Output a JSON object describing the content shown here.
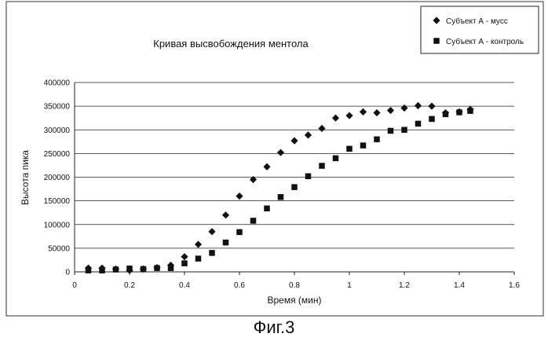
{
  "chart_data": {
    "type": "scatter",
    "title": "Кривая высвобождения ментола",
    "xlabel": "Время (мин)",
    "ylabel": "Высота пика",
    "xlim": [
      0,
      1.6
    ],
    "ylim": [
      0,
      400000
    ],
    "x_ticks": [
      "0",
      "0.2",
      "0.4",
      "0.6",
      "0.8",
      "1",
      "1.2",
      "1.4",
      "1.6"
    ],
    "y_ticks": [
      "0",
      "50000",
      "100000",
      "150000",
      "200000",
      "250000",
      "300000",
      "350000",
      "400000"
    ],
    "grid": "horizontal",
    "legend_position": "top-right",
    "series": [
      {
        "name": "Субъект А - мусс",
        "marker": "diamond",
        "color": "#111111",
        "points": [
          [
            0.05,
            8000
          ],
          [
            0.1,
            8000
          ],
          [
            0.15,
            6000
          ],
          [
            0.2,
            3000
          ],
          [
            0.25,
            6000
          ],
          [
            0.3,
            9000
          ],
          [
            0.35,
            14000
          ],
          [
            0.4,
            32000
          ],
          [
            0.45,
            58000
          ],
          [
            0.5,
            85000
          ],
          [
            0.55,
            120000
          ],
          [
            0.6,
            160000
          ],
          [
            0.65,
            195000
          ],
          [
            0.7,
            222000
          ],
          [
            0.75,
            252000
          ],
          [
            0.8,
            277000
          ],
          [
            0.85,
            289000
          ],
          [
            0.9,
            303000
          ],
          [
            0.95,
            325000
          ],
          [
            1.0,
            330000
          ],
          [
            1.05,
            338000
          ],
          [
            1.1,
            336000
          ],
          [
            1.15,
            341000
          ],
          [
            1.2,
            346000
          ],
          [
            1.25,
            351000
          ],
          [
            1.3,
            350000
          ],
          [
            1.35,
            336000
          ],
          [
            1.4,
            338000
          ],
          [
            1.44,
            343000
          ]
        ]
      },
      {
        "name": "Субъект А - контроль",
        "marker": "square",
        "color": "#111111",
        "points": [
          [
            0.05,
            3000
          ],
          [
            0.1,
            3000
          ],
          [
            0.15,
            5000
          ],
          [
            0.2,
            7000
          ],
          [
            0.25,
            6000
          ],
          [
            0.3,
            8000
          ],
          [
            0.35,
            8000
          ],
          [
            0.4,
            18000
          ],
          [
            0.45,
            28000
          ],
          [
            0.5,
            40000
          ],
          [
            0.55,
            62000
          ],
          [
            0.6,
            84000
          ],
          [
            0.65,
            108000
          ],
          [
            0.7,
            134000
          ],
          [
            0.75,
            158000
          ],
          [
            0.8,
            179000
          ],
          [
            0.85,
            202000
          ],
          [
            0.9,
            224000
          ],
          [
            0.95,
            240000
          ],
          [
            1.0,
            260000
          ],
          [
            1.05,
            267000
          ],
          [
            1.1,
            280000
          ],
          [
            1.15,
            298000
          ],
          [
            1.2,
            300000
          ],
          [
            1.25,
            313000
          ],
          [
            1.3,
            323000
          ],
          [
            1.35,
            333000
          ],
          [
            1.4,
            337000
          ],
          [
            1.44,
            340000
          ]
        ]
      }
    ]
  },
  "caption": "Фиг.3"
}
